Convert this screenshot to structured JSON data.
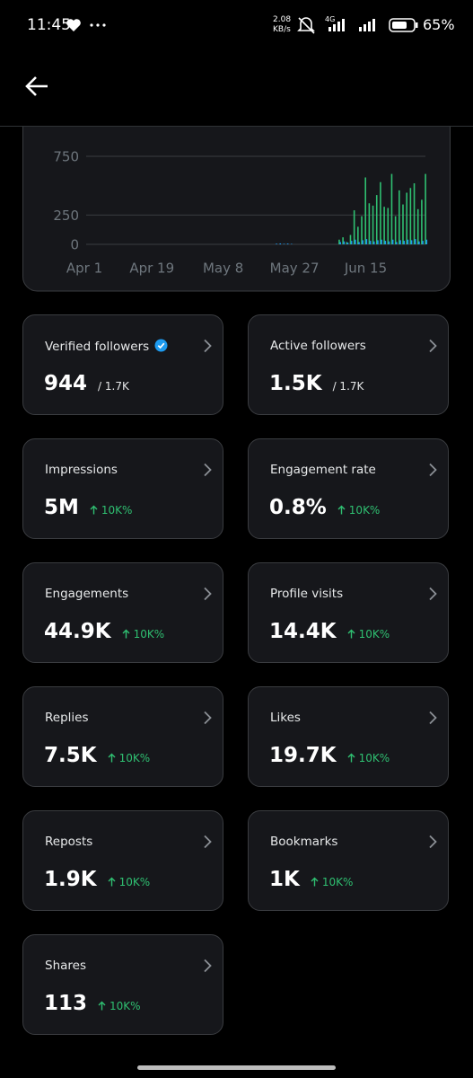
{
  "status_bar": {
    "time": "11:45",
    "speed": "2.08",
    "speed_unit": "KB/s",
    "network": "4G",
    "battery": "65%"
  },
  "chart_data": {
    "type": "bar",
    "ylim": [
      0,
      750
    ],
    "yticks": [
      0,
      250,
      750
    ],
    "grid": true,
    "x": [
      "Apr 1",
      "Apr 2",
      "Apr 3",
      "Apr 4",
      "Apr 5",
      "Apr 6",
      "Apr 7",
      "Apr 8",
      "Apr 9",
      "Apr 10",
      "Apr 11",
      "Apr 12",
      "Apr 13",
      "Apr 14",
      "Apr 15",
      "Apr 16",
      "Apr 17",
      "Apr 18",
      "Apr 19",
      "Apr 20",
      "Apr 21",
      "Apr 22",
      "Apr 23",
      "Apr 24",
      "Apr 25",
      "Apr 26",
      "Apr 27",
      "Apr 28",
      "Apr 29",
      "Apr 30",
      "May 1",
      "May 2",
      "May 3",
      "May 4",
      "May 5",
      "May 6",
      "May 7",
      "May 8",
      "May 9",
      "May 10",
      "May 11",
      "May 12",
      "May 13",
      "May 14",
      "May 15",
      "May 16",
      "May 17",
      "May 18",
      "May 19",
      "May 20",
      "May 21",
      "May 22",
      "May 23",
      "May 24",
      "May 25",
      "May 26",
      "May 27",
      "May 28",
      "May 29",
      "May 30",
      "May 31",
      "Jun 1",
      "Jun 2",
      "Jun 3",
      "Jun 4",
      "Jun 5",
      "Jun 6",
      "Jun 7",
      "Jun 8",
      "Jun 9",
      "Jun 10",
      "Jun 11",
      "Jun 12",
      "Jun 13",
      "Jun 14",
      "Jun 15",
      "Jun 16",
      "Jun 17",
      "Jun 18",
      "Jun 19",
      "Jun 20",
      "Jun 21",
      "Jun 22",
      "Jun 23",
      "Jun 24",
      "Jun 25",
      "Jun 26",
      "Jun 27",
      "Jun 28",
      "Jun 29",
      "Jun 30",
      "Jul 1"
    ],
    "xticks": [
      "Apr 1",
      "Apr 19",
      "May 8",
      "May 27",
      "Jun 15"
    ],
    "series": [
      {
        "color": "#2fbf71",
        "values": [
          0,
          0,
          0,
          0,
          0,
          0,
          0,
          0,
          0,
          0,
          0,
          0,
          0,
          0,
          0,
          0,
          0,
          0,
          0,
          0,
          0,
          0,
          0,
          0,
          0,
          0,
          0,
          0,
          0,
          0,
          0,
          0,
          0,
          0,
          0,
          0,
          0,
          0,
          0,
          0,
          0,
          0,
          0,
          0,
          0,
          0,
          0,
          0,
          0,
          0,
          0,
          0,
          0,
          0,
          0,
          0,
          0,
          0,
          0,
          0,
          0,
          0,
          0,
          0,
          0,
          0,
          0,
          0,
          40,
          60,
          20,
          80,
          290,
          150,
          240,
          570,
          350,
          330,
          420,
          530,
          320,
          310,
          600,
          240,
          460,
          340,
          440,
          480,
          520,
          300,
          380,
          600
        ]
      },
      {
        "color": "#1d9bf0",
        "values": [
          0,
          0,
          0,
          0,
          0,
          0,
          0,
          0,
          0,
          0,
          0,
          0,
          0,
          0,
          0,
          0,
          0,
          0,
          0,
          0,
          0,
          0,
          0,
          0,
          0,
          0,
          0,
          0,
          0,
          0,
          0,
          0,
          0,
          0,
          0,
          0,
          0,
          0,
          0,
          0,
          0,
          0,
          0,
          0,
          0,
          0,
          0,
          0,
          0,
          0,
          0,
          6,
          8,
          5,
          7,
          4,
          0,
          0,
          0,
          0,
          0,
          0,
          0,
          0,
          0,
          0,
          0,
          0,
          20,
          25,
          15,
          30,
          40,
          20,
          35,
          45,
          30,
          25,
          35,
          40,
          30,
          25,
          40,
          20,
          35,
          30,
          40,
          35,
          45,
          25,
          30,
          40
        ]
      }
    ]
  },
  "cards": [
    {
      "label": "Verified followers",
      "value": "944",
      "note": "/ 1.7K"
    },
    {
      "label": "Active followers",
      "value": "1.5K",
      "note": "/ 1.7K"
    },
    {
      "label": "Impressions",
      "value": "5M",
      "change": "10K%"
    },
    {
      "label": "Engagement rate",
      "value": "0.8%",
      "change": "10K%"
    },
    {
      "label": "Engagements",
      "value": "44.9K",
      "change": "10K%"
    },
    {
      "label": "Profile visits",
      "value": "14.4K",
      "change": "10K%"
    },
    {
      "label": "Replies",
      "value": "7.5K",
      "change": "10K%"
    },
    {
      "label": "Likes",
      "value": "19.7K",
      "change": "10K%"
    },
    {
      "label": "Reposts",
      "value": "1.9K",
      "change": "10K%"
    },
    {
      "label": "Bookmarks",
      "value": "1K",
      "change": "10K%"
    },
    {
      "label": "Shares",
      "value": "113",
      "change": "10K%"
    }
  ]
}
